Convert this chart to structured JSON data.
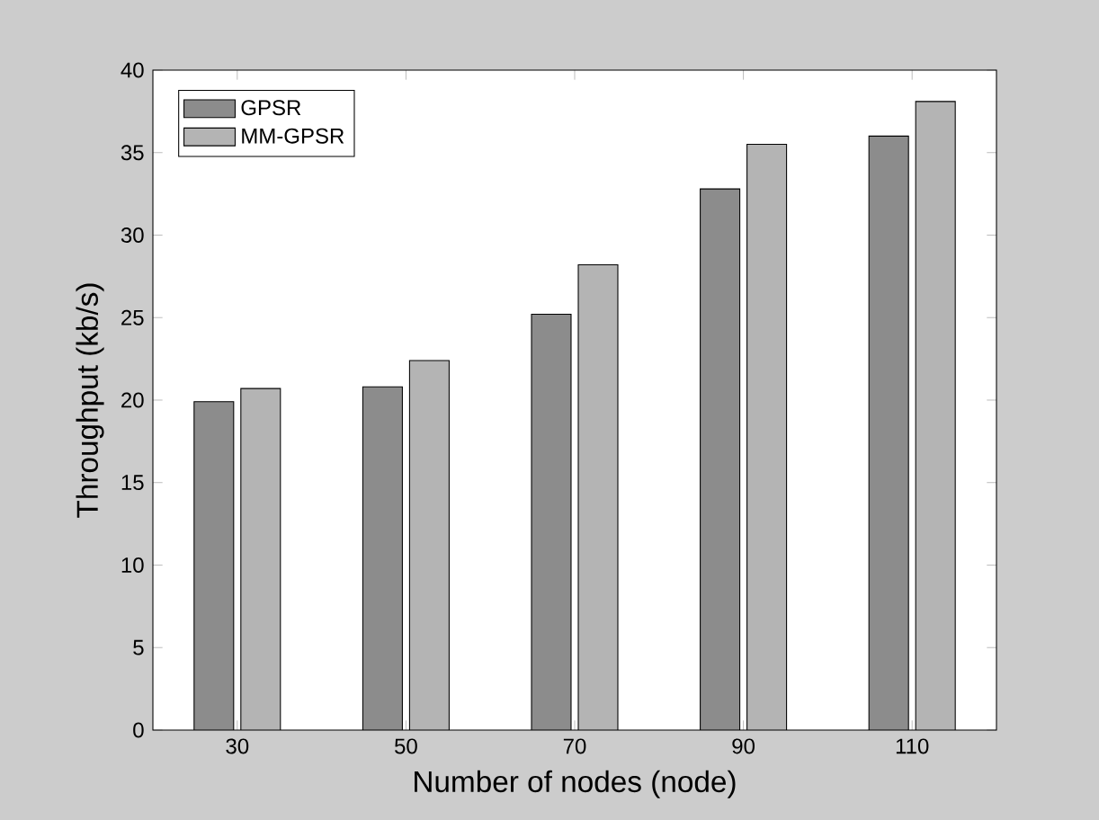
{
  "chart_data": {
    "type": "bar",
    "xlabel": "Number of nodes (node)",
    "ylabel": "Throughput (kb/s)",
    "categories": [
      "30",
      "50",
      "70",
      "90",
      "110"
    ],
    "series": [
      {
        "name": "GPSR",
        "color": "#8c8c8c",
        "values": [
          19.9,
          20.8,
          25.2,
          32.8,
          36.0
        ]
      },
      {
        "name": "MM-GPSR",
        "color": "#b4b4b4",
        "values": [
          20.7,
          22.4,
          28.2,
          35.5,
          38.1
        ]
      }
    ],
    "ylim": [
      0,
      40
    ],
    "yticks": [
      0,
      5,
      10,
      15,
      20,
      25,
      30,
      35,
      40
    ],
    "legend": "top left",
    "grid": false
  }
}
